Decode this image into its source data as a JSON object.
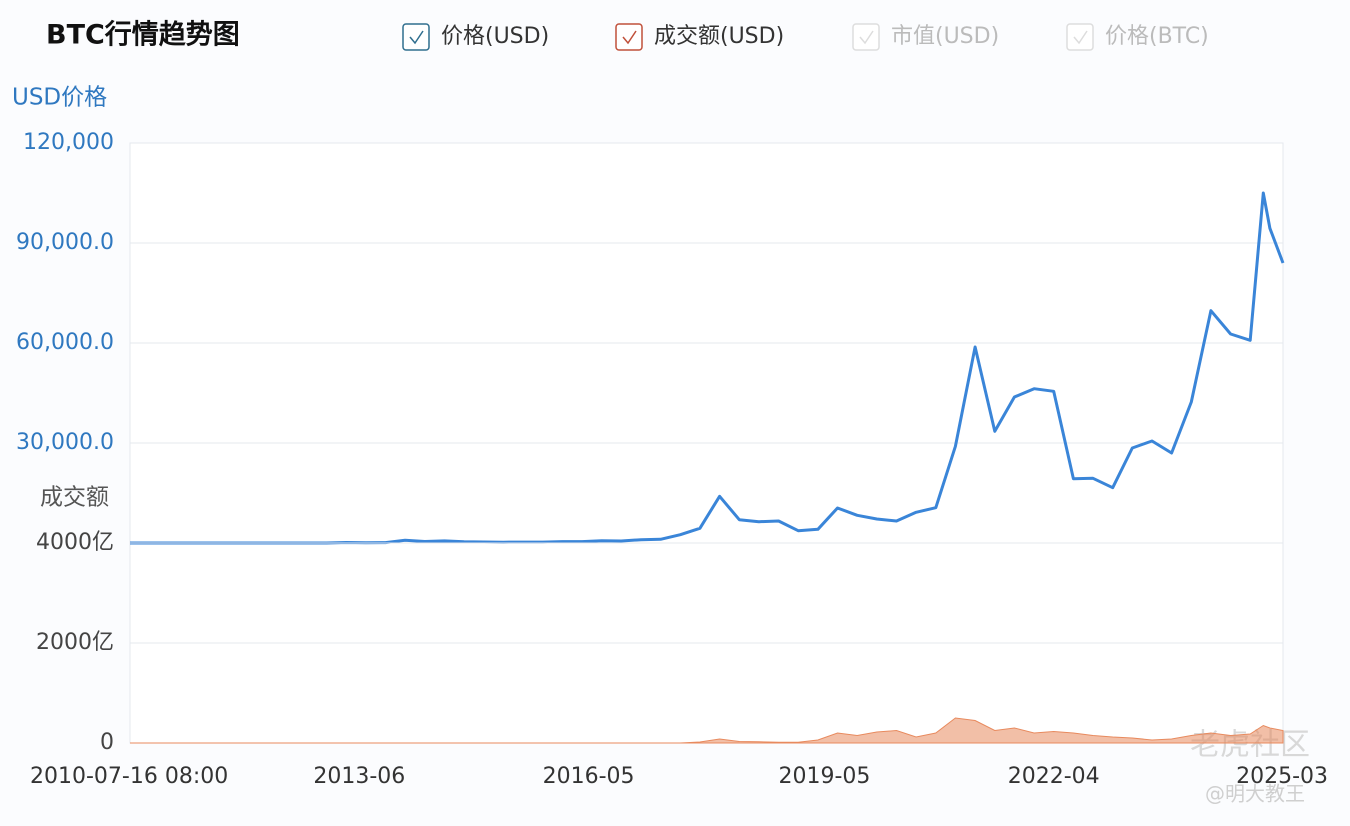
{
  "title": "BTC行情趋势图",
  "legend_inactive": [
    "市值(USD)",
    "价格(BTC)"
  ],
  "watermark": [
    "老虎社区",
    "@明大教王"
  ],
  "chart_data": [
    {
      "type": "line",
      "y_label": "USD价格",
      "x": [
        "2010-07",
        "2010-10",
        "2011-01",
        "2011-04",
        "2011-07",
        "2011-10",
        "2012-01",
        "2012-04",
        "2012-07",
        "2012-10",
        "2013-01",
        "2013-04",
        "2013-07",
        "2013-10",
        "2014-01",
        "2014-04",
        "2014-07",
        "2014-10",
        "2015-01",
        "2015-04",
        "2015-07",
        "2015-10",
        "2016-01",
        "2016-04",
        "2016-07",
        "2016-10",
        "2017-01",
        "2017-04",
        "2017-07",
        "2017-10",
        "2018-01",
        "2018-04",
        "2018-07",
        "2018-10",
        "2019-01",
        "2019-04",
        "2019-07",
        "2019-10",
        "2020-01",
        "2020-04",
        "2020-07",
        "2020-10",
        "2021-01",
        "2021-04",
        "2021-07",
        "2021-10",
        "2022-01",
        "2022-04",
        "2022-07",
        "2022-10",
        "2023-01",
        "2023-04",
        "2023-07",
        "2023-10",
        "2024-01",
        "2024-04",
        "2024-07",
        "2024-10",
        "2024-12",
        "2025-01",
        "2025-03"
      ],
      "series": [
        {
          "name": "价格(USD)",
          "color": "#3a85d8",
          "values": [
            0.07,
            0.1,
            0.3,
            1,
            14,
            4,
            6,
            5,
            7,
            12,
            13,
            140,
            90,
            130,
            800,
            450,
            630,
            380,
            300,
            240,
            260,
            270,
            430,
            420,
            670,
            610,
            1000,
            1100,
            2500,
            4400,
            14000,
            7000,
            6400,
            6600,
            3700,
            4100,
            10500,
            8300,
            7200,
            6600,
            9200,
            10600,
            29000,
            58800,
            33500,
            43800,
            46300,
            45500,
            19300,
            19400,
            16600,
            28500,
            30600,
            27000,
            42300,
            69700,
            62700,
            60800,
            105000,
            94400,
            84000
          ]
        }
      ],
      "ylim": [
        0,
        120000
      ],
      "yticks": [
        {
          "value": 30000,
          "label": "30,000.0"
        },
        {
          "value": 60000,
          "label": "60,000.0"
        },
        {
          "value": 90000,
          "label": "90,000.0"
        },
        {
          "value": 120000,
          "label": "120,000"
        }
      ]
    },
    {
      "type": "area",
      "y_label": "成交额",
      "x": [
        "2010-07",
        "2010-10",
        "2011-01",
        "2011-04",
        "2011-07",
        "2011-10",
        "2012-01",
        "2012-04",
        "2012-07",
        "2012-10",
        "2013-01",
        "2013-04",
        "2013-07",
        "2013-10",
        "2014-01",
        "2014-04",
        "2014-07",
        "2014-10",
        "2015-01",
        "2015-04",
        "2015-07",
        "2015-10",
        "2016-01",
        "2016-04",
        "2016-07",
        "2016-10",
        "2017-01",
        "2017-04",
        "2017-07",
        "2017-10",
        "2018-01",
        "2018-04",
        "2018-07",
        "2018-10",
        "2019-01",
        "2019-04",
        "2019-07",
        "2019-10",
        "2020-01",
        "2020-04",
        "2020-07",
        "2020-10",
        "2021-01",
        "2021-04",
        "2021-07",
        "2021-10",
        "2022-01",
        "2022-04",
        "2022-07",
        "2022-10",
        "2023-01",
        "2023-04",
        "2023-07",
        "2023-10",
        "2024-01",
        "2024-04",
        "2024-07",
        "2024-10",
        "2024-12",
        "2025-01",
        "2025-03"
      ],
      "series": [
        {
          "name": "成交额(USD)",
          "color": "#e88a5e",
          "values": [
            0,
            0,
            0,
            0,
            0,
            0,
            0,
            0,
            0,
            0,
            0,
            0,
            0,
            0,
            0,
            0,
            0,
            0,
            0,
            0,
            0,
            0,
            0,
            0,
            0,
            0,
            0,
            0,
            0,
            20,
            80,
            30,
            25,
            15,
            15,
            60,
            200,
            150,
            220,
            250,
            120,
            200,
            500,
            450,
            250,
            300,
            200,
            230,
            200,
            150,
            120,
            100,
            60,
            80,
            150,
            200,
            150,
            180,
            350,
            300,
            250
          ]
        }
      ],
      "ylim": [
        0,
        4000
      ],
      "yticks": [
        0,
        {
          "value": 2000,
          "label": "2000亿"
        },
        {
          "value": 4000,
          "label": "4000亿"
        }
      ],
      "xticks": [
        "2010-07-16 08:00",
        "2013-06",
        "2016-05",
        "2019-05",
        "2022-04",
        "2025-03"
      ]
    }
  ]
}
